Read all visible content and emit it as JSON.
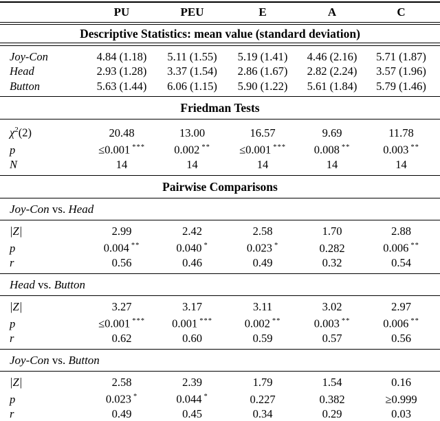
{
  "colors": {
    "text": "#000000",
    "background": "#ffffff",
    "rule": "#000000"
  },
  "header": {
    "columns": [
      "PU",
      "PEU",
      "E",
      "A",
      "C"
    ]
  },
  "descriptive": {
    "title": "Descriptive Statistics: mean value (standard deviation)",
    "rows": [
      {
        "label": "Joy-Con",
        "cells": [
          {
            "v": "4.84 (1.18)"
          },
          {
            "v": "5.11 (1.55)"
          },
          {
            "v": "5.19 (1.41)"
          },
          {
            "v": "4.46 (2.16)"
          },
          {
            "v": "5.71 (1.87)"
          }
        ]
      },
      {
        "label": "Head",
        "cells": [
          {
            "v": "2.93 (1.28)"
          },
          {
            "v": "3.37 (1.54)"
          },
          {
            "v": "2.86 (1.67)"
          },
          {
            "v": "2.82 (2.24)"
          },
          {
            "v": "3.57 (1.96)"
          }
        ]
      },
      {
        "label": "Button",
        "cells": [
          {
            "v": "5.63 (1.44)"
          },
          {
            "v": "6.06 (1.15)"
          },
          {
            "v": "5.90 (1.22)"
          },
          {
            "v": "5.61 (1.84)"
          },
          {
            "v": "5.79 (1.46)"
          }
        ]
      }
    ]
  },
  "friedman": {
    "title": "Friedman Tests",
    "rows": [
      {
        "label": {
          "base": "χ",
          "sup": "2",
          "rest": "(2)"
        },
        "cells": [
          {
            "v": "20.48"
          },
          {
            "v": "13.00"
          },
          {
            "v": "16.57"
          },
          {
            "v": "9.69"
          },
          {
            "v": "11.78"
          }
        ]
      },
      {
        "label": "p",
        "cells": [
          {
            "v": "≤0.001",
            "s": "***"
          },
          {
            "v": "0.002",
            "s": "**"
          },
          {
            "v": "≤0.001",
            "s": "***"
          },
          {
            "v": "0.008",
            "s": "**"
          },
          {
            "v": "0.003",
            "s": "**"
          }
        ]
      },
      {
        "label": "N",
        "cells": [
          {
            "v": "14"
          },
          {
            "v": "14"
          },
          {
            "v": "14"
          },
          {
            "v": "14"
          },
          {
            "v": "14"
          }
        ]
      }
    ]
  },
  "pairwise": {
    "title": "Pairwise Comparisons",
    "vs_label": "vs.",
    "groups": [
      {
        "a": "Joy-Con",
        "b": "Head",
        "rows": [
          {
            "label": "|Z|",
            "cells": [
              {
                "v": "2.99"
              },
              {
                "v": "2.42"
              },
              {
                "v": "2.58"
              },
              {
                "v": "1.70"
              },
              {
                "v": "2.88"
              }
            ]
          },
          {
            "label": "p",
            "cells": [
              {
                "v": "0.004",
                "s": "**"
              },
              {
                "v": "0.040",
                "s": "*"
              },
              {
                "v": "0.023",
                "s": "*"
              },
              {
                "v": "0.282"
              },
              {
                "v": "0.006",
                "s": "**"
              }
            ]
          },
          {
            "label": "r",
            "cells": [
              {
                "v": "0.56"
              },
              {
                "v": "0.46"
              },
              {
                "v": "0.49"
              },
              {
                "v": "0.32"
              },
              {
                "v": "0.54"
              }
            ]
          }
        ]
      },
      {
        "a": "Head",
        "b": "Button",
        "rows": [
          {
            "label": "|Z|",
            "cells": [
              {
                "v": "3.27"
              },
              {
                "v": "3.17"
              },
              {
                "v": "3.11"
              },
              {
                "v": "3.02"
              },
              {
                "v": "2.97"
              }
            ]
          },
          {
            "label": "p",
            "cells": [
              {
                "v": "≤0.001",
                "s": "***"
              },
              {
                "v": "0.001",
                "s": "***"
              },
              {
                "v": "0.002",
                "s": "**"
              },
              {
                "v": "0.003",
                "s": "**"
              },
              {
                "v": "0.006",
                "s": "**"
              }
            ]
          },
          {
            "label": "r",
            "cells": [
              {
                "v": "0.62"
              },
              {
                "v": "0.60"
              },
              {
                "v": "0.59"
              },
              {
                "v": "0.57"
              },
              {
                "v": "0.56"
              }
            ]
          }
        ]
      },
      {
        "a": "Joy-Con",
        "b": "Button",
        "rows": [
          {
            "label": "|Z|",
            "cells": [
              {
                "v": "2.58"
              },
              {
                "v": "2.39"
              },
              {
                "v": "1.79"
              },
              {
                "v": "1.54"
              },
              {
                "v": "0.16"
              }
            ]
          },
          {
            "label": "p",
            "cells": [
              {
                "v": "0.023",
                "s": "*"
              },
              {
                "v": "0.044",
                "s": "*"
              },
              {
                "v": "0.227"
              },
              {
                "v": "0.382"
              },
              {
                "v": "≥0.999"
              }
            ]
          },
          {
            "label": "r",
            "cells": [
              {
                "v": "0.49"
              },
              {
                "v": "0.45"
              },
              {
                "v": "0.34"
              },
              {
                "v": "0.29"
              },
              {
                "v": "0.03"
              }
            ]
          }
        ]
      }
    ]
  }
}
